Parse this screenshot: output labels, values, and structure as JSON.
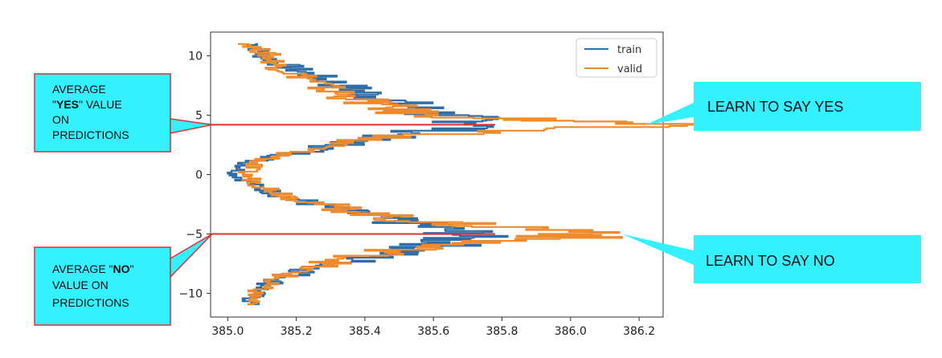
{
  "chart_data": {
    "type": "line",
    "orientation": "horizontal",
    "xlim": [
      384.95,
      386.27
    ],
    "ylim": [
      -12,
      12
    ],
    "xticks": [
      "385.0",
      "385.2",
      "385.4",
      "385.6",
      "385.8",
      "386.0",
      "386.2"
    ],
    "xtick_values": [
      385.0,
      385.2,
      385.4,
      385.6,
      385.8,
      386.0,
      386.2
    ],
    "yticks": [
      "10",
      "5",
      "0",
      "−5",
      "−10"
    ],
    "ytick_values": [
      10,
      5,
      0,
      -5,
      -10
    ],
    "legend_position": "top-right",
    "series": [
      {
        "name": "train",
        "color": "#2f6ea8",
        "y": [
          11,
          10,
          9,
          8,
          7,
          6,
          5,
          4.2,
          3,
          2,
          1,
          0,
          -1,
          -2,
          -3,
          -4,
          -5,
          -6,
          -7,
          -8,
          -9,
          -10,
          -11
        ],
        "x": [
          385.08,
          385.1,
          385.18,
          385.28,
          385.38,
          385.5,
          385.62,
          385.78,
          385.42,
          385.25,
          385.06,
          385.02,
          385.08,
          385.18,
          385.32,
          385.5,
          385.7,
          385.62,
          385.42,
          385.25,
          385.14,
          385.08,
          385.06
        ]
      },
      {
        "name": "valid",
        "color": "#ef8a2d",
        "y": [
          11,
          10,
          9,
          8,
          7,
          6,
          5,
          4.2,
          3,
          2,
          1,
          0,
          -1,
          -2,
          -3,
          -4,
          -5,
          -6,
          -7,
          -8,
          -9,
          -10,
          -11
        ],
        "x": [
          385.06,
          385.12,
          385.15,
          385.24,
          385.3,
          385.42,
          385.55,
          386.22,
          385.4,
          385.22,
          385.08,
          385.05,
          385.1,
          385.2,
          385.35,
          385.55,
          386.15,
          385.6,
          385.38,
          385.22,
          385.12,
          385.08,
          385.06
        ]
      }
    ],
    "annotations": {
      "yes_line_y": 4.2,
      "no_line_y": -5.0,
      "yes_line_x_end": 385.78,
      "no_line_x_end": 385.78,
      "yes_pointer_x": 386.22,
      "no_pointer_x": 386.15,
      "line_color": "#e03030",
      "box_fill": "#33f1ff",
      "box_border": "#e03030"
    }
  },
  "callouts": {
    "yes_left_lines": [
      "AVERAGE",
      "\"YES\" VALUE",
      "ON",
      "PREDICTIONS"
    ],
    "yes_left_bold": "YES",
    "no_left_lines": [
      "AVERAGE \"NO\"",
      "VALUE ON",
      "PREDICTIONS"
    ],
    "no_left_bold": "NO",
    "yes_right": "LEARN TO SAY YES",
    "no_right": "LEARN TO SAY NO"
  }
}
